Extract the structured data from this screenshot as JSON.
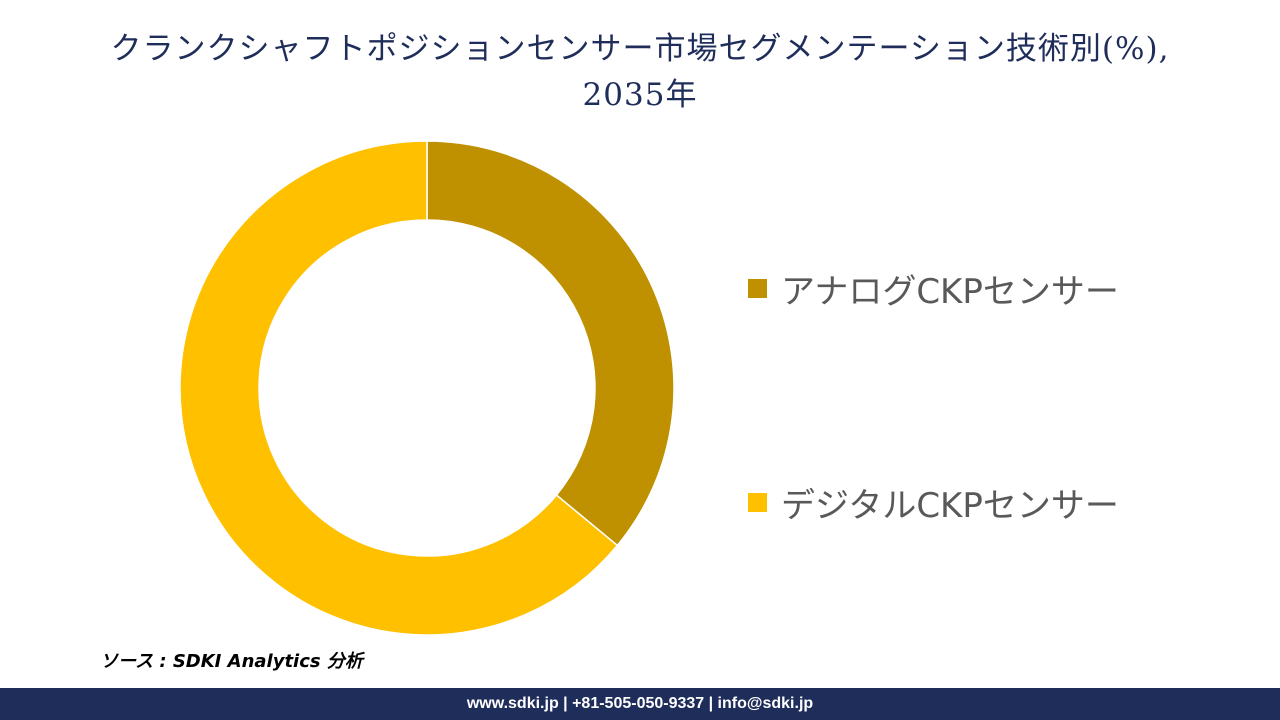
{
  "chart_data": {
    "type": "pie",
    "title_lines": [
      "クランクシャフトポジションセンサー市場セグメンテーション技術別(%),",
      "2035年"
    ],
    "categories": [
      "アナログCKPセンサー",
      "デジタルCKPセンサー"
    ],
    "values": [
      36,
      64
    ],
    "colors": [
      "#bf9000",
      "#ffc000"
    ],
    "legend_position": "right"
  },
  "source": "ソース : SDKI Analytics 分析",
  "footer": "www.sdki.jp | +81-505-050-9337 | info@sdki.jp"
}
